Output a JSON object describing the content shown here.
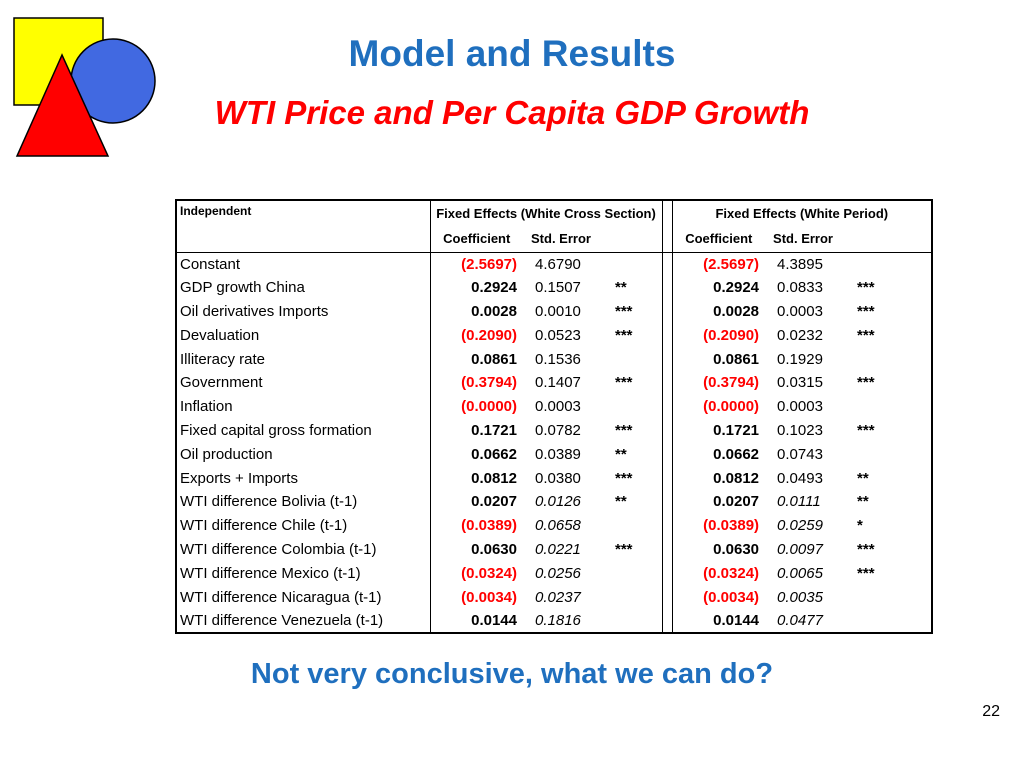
{
  "slide": {
    "title": "Model and Results",
    "subtitle": "WTI Price and Per Capita GDP Growth",
    "conclusion": "Not very conclusive, what we can do?",
    "page_number": "22"
  },
  "colors": {
    "heading_blue": "#1f6fbe",
    "subtitle_red": "#ff0000",
    "negative_value_red": "#ff0000"
  },
  "logo": {
    "square_color": "#ffff00",
    "circle_color": "#4169e1",
    "triangle_color": "#ff0000",
    "outline_color": "#000000"
  },
  "table": {
    "col1_header": "Independent",
    "group_headers": [
      "Fixed Effects (White Cross Section)",
      "Fixed Effects (White Period)"
    ],
    "coefficient_label": "Coefficient",
    "std_error_label": "Std. Error",
    "rows": [
      {
        "name": "Constant",
        "coef1": "(2.5697)",
        "se1": "4.6790",
        "sig1": "",
        "coef2": "(2.5697)",
        "se2": "4.3895",
        "sig2": "",
        "se_italic": false
      },
      {
        "name": "GDP growth China",
        "coef1": "0.2924",
        "se1": "0.1507",
        "sig1": "**",
        "coef2": "0.2924",
        "se2": "0.0833",
        "sig2": "***",
        "se_italic": false
      },
      {
        "name": "Oil derivatives Imports",
        "coef1": "0.0028",
        "se1": "0.0010",
        "sig1": "***",
        "coef2": "0.0028",
        "se2": "0.0003",
        "sig2": "***",
        "se_italic": false
      },
      {
        "name": "Devaluation",
        "coef1": "(0.2090)",
        "se1": "0.0523",
        "sig1": "***",
        "coef2": "(0.2090)",
        "se2": "0.0232",
        "sig2": "***",
        "se_italic": false
      },
      {
        "name": "Illiteracy rate",
        "coef1": "0.0861",
        "se1": "0.1536",
        "sig1": "",
        "coef2": "0.0861",
        "se2": "0.1929",
        "sig2": "",
        "se_italic": false
      },
      {
        "name": "Government",
        "coef1": "(0.3794)",
        "se1": "0.1407",
        "sig1": "***",
        "coef2": "(0.3794)",
        "se2": "0.0315",
        "sig2": "***",
        "se_italic": false
      },
      {
        "name": "Inflation",
        "coef1": "(0.0000)",
        "se1": "0.0003",
        "sig1": "",
        "coef2": "(0.0000)",
        "se2": "0.0003",
        "sig2": "",
        "se_italic": false
      },
      {
        "name": "Fixed capital gross formation",
        "coef1": "0.1721",
        "se1": "0.0782",
        "sig1": "***",
        "coef2": "0.1721",
        "se2": "0.1023",
        "sig2": "***",
        "se_italic": false
      },
      {
        "name": "Oil production",
        "coef1": "0.0662",
        "se1": "0.0389",
        "sig1": "**",
        "coef2": "0.0662",
        "se2": "0.0743",
        "sig2": "",
        "se_italic": false
      },
      {
        "name": "Exports + Imports",
        "coef1": "0.0812",
        "se1": "0.0380",
        "sig1": "***",
        "coef2": "0.0812",
        "se2": "0.0493",
        "sig2": "**",
        "se_italic": false
      },
      {
        "name": "WTI difference Bolivia (t-1)",
        "coef1": "0.0207",
        "se1": "0.0126",
        "sig1": "**",
        "coef2": "0.0207",
        "se2": "0.0111",
        "sig2": "**",
        "se_italic": true
      },
      {
        "name": "WTI difference Chile (t-1)",
        "coef1": "(0.0389)",
        "se1": "0.0658",
        "sig1": "",
        "coef2": "(0.0389)",
        "se2": "0.0259",
        "sig2": "*",
        "se_italic": true
      },
      {
        "name": "WTI difference Colombia (t-1)",
        "coef1": "0.0630",
        "se1": "0.0221",
        "sig1": "***",
        "coef2": "0.0630",
        "se2": "0.0097",
        "sig2": "***",
        "se_italic": true
      },
      {
        "name": "WTI difference Mexico (t-1)",
        "coef1": "(0.0324)",
        "se1": "0.0256",
        "sig1": "",
        "coef2": "(0.0324)",
        "se2": "0.0065",
        "sig2": "***",
        "se_italic": true
      },
      {
        "name": "WTI difference Nicaragua (t-1)",
        "coef1": "(0.0034)",
        "se1": "0.0237",
        "sig1": "",
        "coef2": "(0.0034)",
        "se2": "0.0035",
        "sig2": "",
        "se_italic": true
      },
      {
        "name": "WTI difference Venezuela (t-1)",
        "coef1": "0.0144",
        "se1": "0.1816",
        "sig1": "",
        "coef2": "0.0144",
        "se2": "0.0477",
        "sig2": "",
        "se_italic": true
      }
    ]
  }
}
